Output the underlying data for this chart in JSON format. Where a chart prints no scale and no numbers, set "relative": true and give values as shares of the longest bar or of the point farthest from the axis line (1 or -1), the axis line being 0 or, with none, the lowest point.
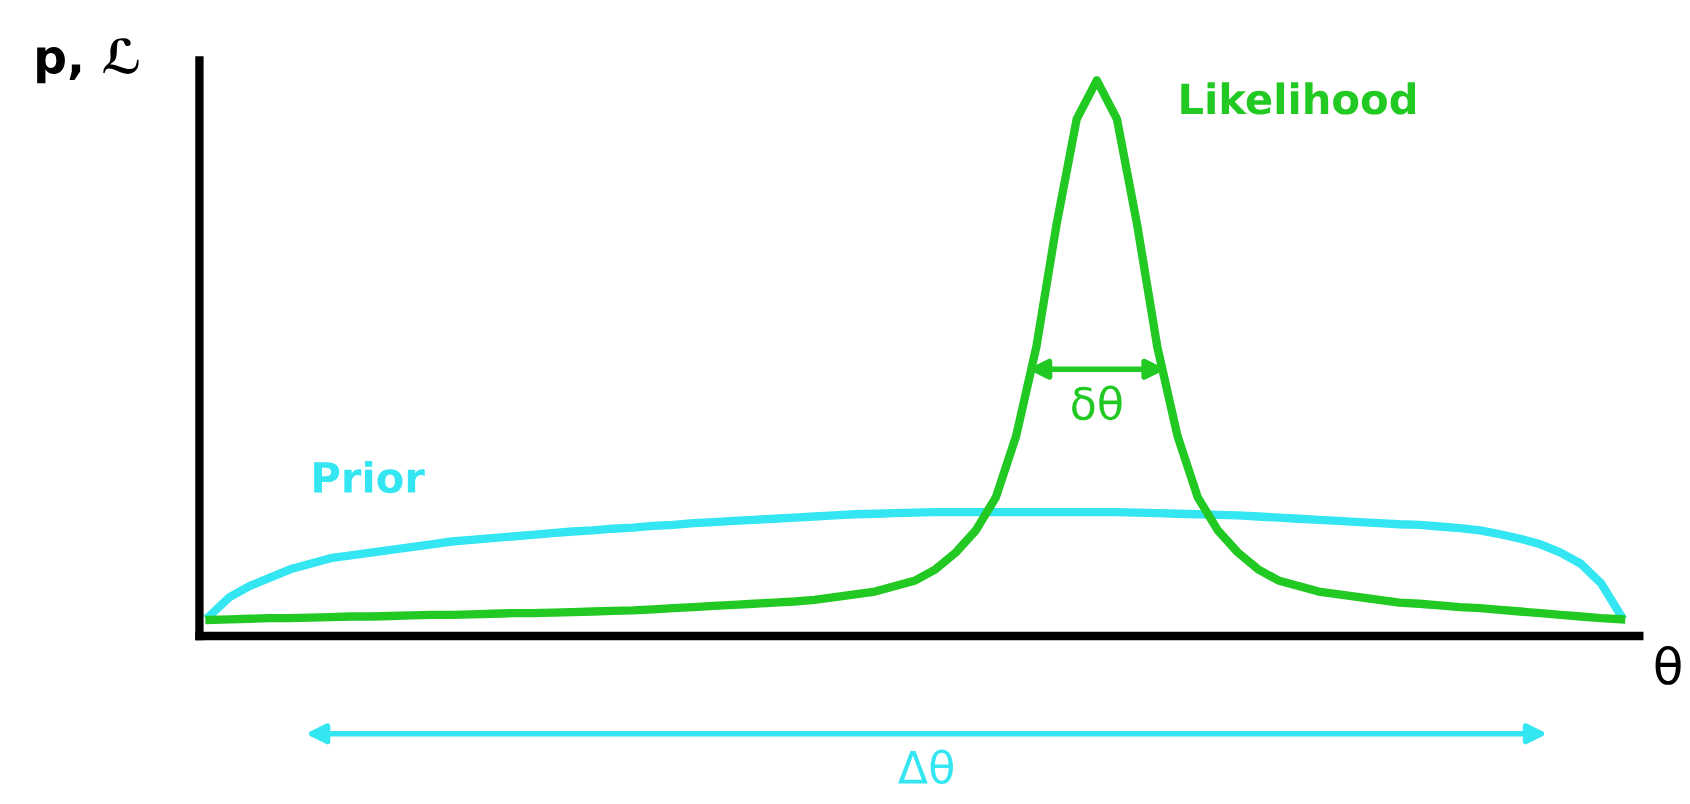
{
  "chart_data": {
    "type": "line",
    "relative": true,
    "xlabel": "θ",
    "ylabel": "p, ℒ",
    "legend": false,
    "marker": "none",
    "line_style": "solid",
    "categories": [
      null,
      null,
      null,
      null,
      null,
      null,
      null,
      null,
      null,
      null,
      null,
      null,
      null,
      null,
      null,
      null,
      null,
      null,
      null,
      null,
      null,
      null,
      null,
      null,
      null,
      null,
      null,
      null,
      null,
      null,
      null,
      null,
      null,
      null,
      null,
      null,
      null,
      null,
      null,
      null,
      null,
      null,
      null,
      null,
      null,
      null,
      null,
      null,
      null,
      null,
      null,
      null,
      null,
      null,
      null,
      null,
      null,
      null,
      null,
      null,
      null,
      null,
      null,
      null,
      null,
      null,
      null,
      null,
      null,
      null,
      null
    ],
    "series": [
      {
        "name": "Prior",
        "color": "#33e6f2",
        "values": [
          0.036,
          0.07,
          0.09,
          0.105,
          0.12,
          0.13,
          0.14,
          0.145,
          0.15,
          0.155,
          0.16,
          0.165,
          0.17,
          0.173,
          0.176,
          0.179,
          0.182,
          0.185,
          0.188,
          0.19,
          0.193,
          0.195,
          0.198,
          0.2,
          0.203,
          0.205,
          0.207,
          0.209,
          0.211,
          0.213,
          0.215,
          0.217,
          0.219,
          0.22,
          0.221,
          0.222,
          0.223,
          0.223,
          0.223,
          0.223,
          0.223,
          0.223,
          0.223,
          0.223,
          0.223,
          0.223,
          0.222,
          0.221,
          0.22,
          0.219,
          0.218,
          0.217,
          0.215,
          0.213,
          0.211,
          0.209,
          0.207,
          0.205,
          0.203,
          0.201,
          0.2,
          0.197,
          0.194,
          0.19,
          0.183,
          0.175,
          0.165,
          0.15,
          0.13,
          0.095,
          0.036
        ]
      },
      {
        "name": "Likelihood",
        "color": "#22c922",
        "values": [
          0.029,
          0.03,
          0.031,
          0.032,
          0.032,
          0.033,
          0.034,
          0.035,
          0.035,
          0.036,
          0.037,
          0.038,
          0.038,
          0.039,
          0.04,
          0.041,
          0.041,
          0.042,
          0.043,
          0.044,
          0.045,
          0.046,
          0.048,
          0.05,
          0.052,
          0.054,
          0.056,
          0.058,
          0.06,
          0.062,
          0.065,
          0.07,
          0.075,
          0.08,
          0.09,
          0.1,
          0.12,
          0.15,
          0.19,
          0.25,
          0.36,
          0.52,
          0.74,
          0.93,
          1.0,
          0.93,
          0.74,
          0.52,
          0.36,
          0.25,
          0.19,
          0.15,
          0.12,
          0.1,
          0.09,
          0.08,
          0.075,
          0.07,
          0.065,
          0.06,
          0.058,
          0.055,
          0.052,
          0.05,
          0.047,
          0.044,
          0.041,
          0.038,
          0.035,
          0.032,
          0.03
        ]
      }
    ],
    "annotations": [
      "δθ",
      "Δθ"
    ]
  }
}
